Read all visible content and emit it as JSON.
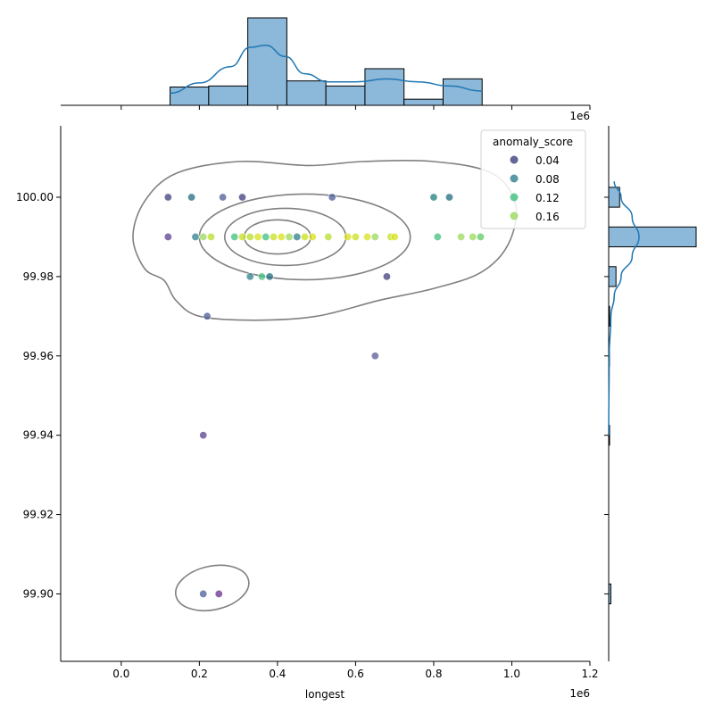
{
  "chart_data": {
    "type": "scatter",
    "kind": "joint plot with marginal histograms and KDE contours",
    "xlabel": "longest",
    "ylabel": "",
    "x_offset_label": "1e6",
    "top_offset_label": "1e6",
    "xlim": [
      -0.155,
      1.2
    ],
    "ylim": [
      99.883,
      100.018
    ],
    "x_ticks": [
      0.0,
      0.2,
      0.4,
      0.6,
      0.8,
      1.0,
      1.2
    ],
    "x_tick_labels": [
      "0.0",
      "0.2",
      "0.4",
      "0.6",
      "0.8",
      "1.0",
      "1.2"
    ],
    "y_ticks": [
      99.9,
      99.92,
      99.94,
      99.96,
      99.98,
      100.0
    ],
    "y_tick_labels": [
      "99.90",
      "99.92",
      "99.94",
      "99.96",
      "99.98",
      "100.00"
    ],
    "legend": {
      "title": "anomaly_score",
      "placement": "top-right",
      "entries": [
        {
          "label": "0.04",
          "color": "#3d3f7e"
        },
        {
          "label": "0.08",
          "color": "#2f7f8e"
        },
        {
          "label": "0.12",
          "color": "#3fbf7f"
        },
        {
          "label": "0.16",
          "color": "#9bd85c"
        }
      ]
    },
    "points": [
      {
        "x": 0.12,
        "y": 100.0,
        "color": "#3d3f7e"
      },
      {
        "x": 0.18,
        "y": 100.0,
        "color": "#1f6b7e"
      },
      {
        "x": 0.26,
        "y": 100.0,
        "color": "#4a5c95"
      },
      {
        "x": 0.31,
        "y": 100.0,
        "color": "#3d3f7e"
      },
      {
        "x": 0.54,
        "y": 100.0,
        "color": "#4a5c95"
      },
      {
        "x": 0.8,
        "y": 100.0,
        "color": "#1f7f7e"
      },
      {
        "x": 0.84,
        "y": 100.0,
        "color": "#1f6b7e"
      },
      {
        "x": 0.12,
        "y": 99.99,
        "color": "#5a3f8e"
      },
      {
        "x": 0.19,
        "y": 99.99,
        "color": "#2f7f8e"
      },
      {
        "x": 0.21,
        "y": 99.99,
        "color": "#9bd85c"
      },
      {
        "x": 0.23,
        "y": 99.99,
        "color": "#b5de2b"
      },
      {
        "x": 0.29,
        "y": 99.99,
        "color": "#3fbf7f"
      },
      {
        "x": 0.31,
        "y": 99.99,
        "color": "#c8e020"
      },
      {
        "x": 0.33,
        "y": 99.99,
        "color": "#b5de2b"
      },
      {
        "x": 0.35,
        "y": 99.99,
        "color": "#d8e219"
      },
      {
        "x": 0.37,
        "y": 99.99,
        "color": "#3fbf7f"
      },
      {
        "x": 0.39,
        "y": 99.99,
        "color": "#c8e020"
      },
      {
        "x": 0.41,
        "y": 99.99,
        "color": "#d8e219"
      },
      {
        "x": 0.43,
        "y": 99.99,
        "color": "#9bd85c"
      },
      {
        "x": 0.45,
        "y": 99.99,
        "color": "#2f7f8e"
      },
      {
        "x": 0.47,
        "y": 99.99,
        "color": "#c8e020"
      },
      {
        "x": 0.49,
        "y": 99.99,
        "color": "#d8e219"
      },
      {
        "x": 0.53,
        "y": 99.99,
        "color": "#b5de2b"
      },
      {
        "x": 0.58,
        "y": 99.99,
        "color": "#d8e219"
      },
      {
        "x": 0.6,
        "y": 99.99,
        "color": "#c8e020"
      },
      {
        "x": 0.63,
        "y": 99.99,
        "color": "#d8e219"
      },
      {
        "x": 0.65,
        "y": 99.99,
        "color": "#9bd85c"
      },
      {
        "x": 0.69,
        "y": 99.99,
        "color": "#c8e020"
      },
      {
        "x": 0.7,
        "y": 99.99,
        "color": "#d8e219"
      },
      {
        "x": 0.81,
        "y": 99.99,
        "color": "#3fbf7f"
      },
      {
        "x": 0.87,
        "y": 99.99,
        "color": "#9bd85c"
      },
      {
        "x": 0.9,
        "y": 99.99,
        "color": "#9bd85c"
      },
      {
        "x": 0.92,
        "y": 99.99,
        "color": "#5ec962"
      },
      {
        "x": 0.33,
        "y": 99.98,
        "color": "#2f7f8e"
      },
      {
        "x": 0.36,
        "y": 99.98,
        "color": "#3fbf7f"
      },
      {
        "x": 0.38,
        "y": 99.98,
        "color": "#1f6b7e"
      },
      {
        "x": 0.68,
        "y": 99.98,
        "color": "#3d3f7e"
      },
      {
        "x": 0.22,
        "y": 99.97,
        "color": "#4a5c95"
      },
      {
        "x": 0.65,
        "y": 99.96,
        "color": "#5a5c95"
      },
      {
        "x": 0.21,
        "y": 99.94,
        "color": "#5a3f8e"
      },
      {
        "x": 0.21,
        "y": 99.9,
        "color": "#4a5c95"
      },
      {
        "x": 0.25,
        "y": 99.9,
        "color": "#6a2f8e"
      }
    ],
    "x_histogram": {
      "bins": [
        [
          0.125,
          0.224
        ],
        [
          0.224,
          0.324
        ],
        [
          0.324,
          0.424
        ],
        [
          0.424,
          0.524
        ],
        [
          0.524,
          0.624
        ],
        [
          0.624,
          0.724
        ],
        [
          0.724,
          0.824
        ],
        [
          0.824,
          0.924
        ]
      ],
      "counts": [
        1.8,
        1.9,
        8.6,
        2.4,
        1.9,
        3.6,
        0.6,
        2.6
      ],
      "kde": [
        [
          0.125,
          1.2
        ],
        [
          0.2,
          2.2
        ],
        [
          0.28,
          3.8
        ],
        [
          0.33,
          5.7
        ],
        [
          0.37,
          5.9
        ],
        [
          0.42,
          4.8
        ],
        [
          0.47,
          3.1
        ],
        [
          0.53,
          2.3
        ],
        [
          0.6,
          2.3
        ],
        [
          0.68,
          2.6
        ],
        [
          0.76,
          2.3
        ],
        [
          0.84,
          1.9
        ],
        [
          0.924,
          1.4
        ]
      ]
    },
    "y_histogram": {
      "bins": [
        [
          99.8975,
          99.9025
        ],
        [
          99.9375,
          99.9425
        ],
        [
          99.9575,
          99.9625
        ],
        [
          99.9675,
          99.9725
        ],
        [
          99.9775,
          99.9825
        ],
        [
          99.9875,
          99.9925
        ],
        [
          99.9975,
          100.0025
        ]
      ],
      "counts": [
        0.15,
        0.05,
        0.05,
        0.05,
        0.5,
        6.0,
        0.75
      ],
      "kde": [
        [
          99.94,
          0.0
        ],
        [
          99.96,
          0.02
        ],
        [
          99.97,
          0.08
        ],
        [
          99.975,
          0.2
        ],
        [
          99.98,
          0.45
        ],
        [
          99.985,
          0.85
        ],
        [
          99.99,
          1.1
        ],
        [
          99.995,
          0.85
        ],
        [
          100.0,
          0.45
        ],
        [
          100.004,
          0.2
        ]
      ]
    },
    "kde_contours": [
      {
        "cx": 0.4,
        "cy": 99.99,
        "rx": 0.085,
        "ry": 0.0043
      },
      {
        "cx": 0.42,
        "cy": 99.99,
        "rx": 0.155,
        "ry": 0.0072
      },
      {
        "cx": 0.47,
        "cy": 99.99,
        "rx": 0.27,
        "ry": 0.0108
      },
      {
        "cx": 0.233,
        "cy": 99.9015,
        "rx": 0.095,
        "ry": 0.0055,
        "rot": -12
      }
    ]
  }
}
